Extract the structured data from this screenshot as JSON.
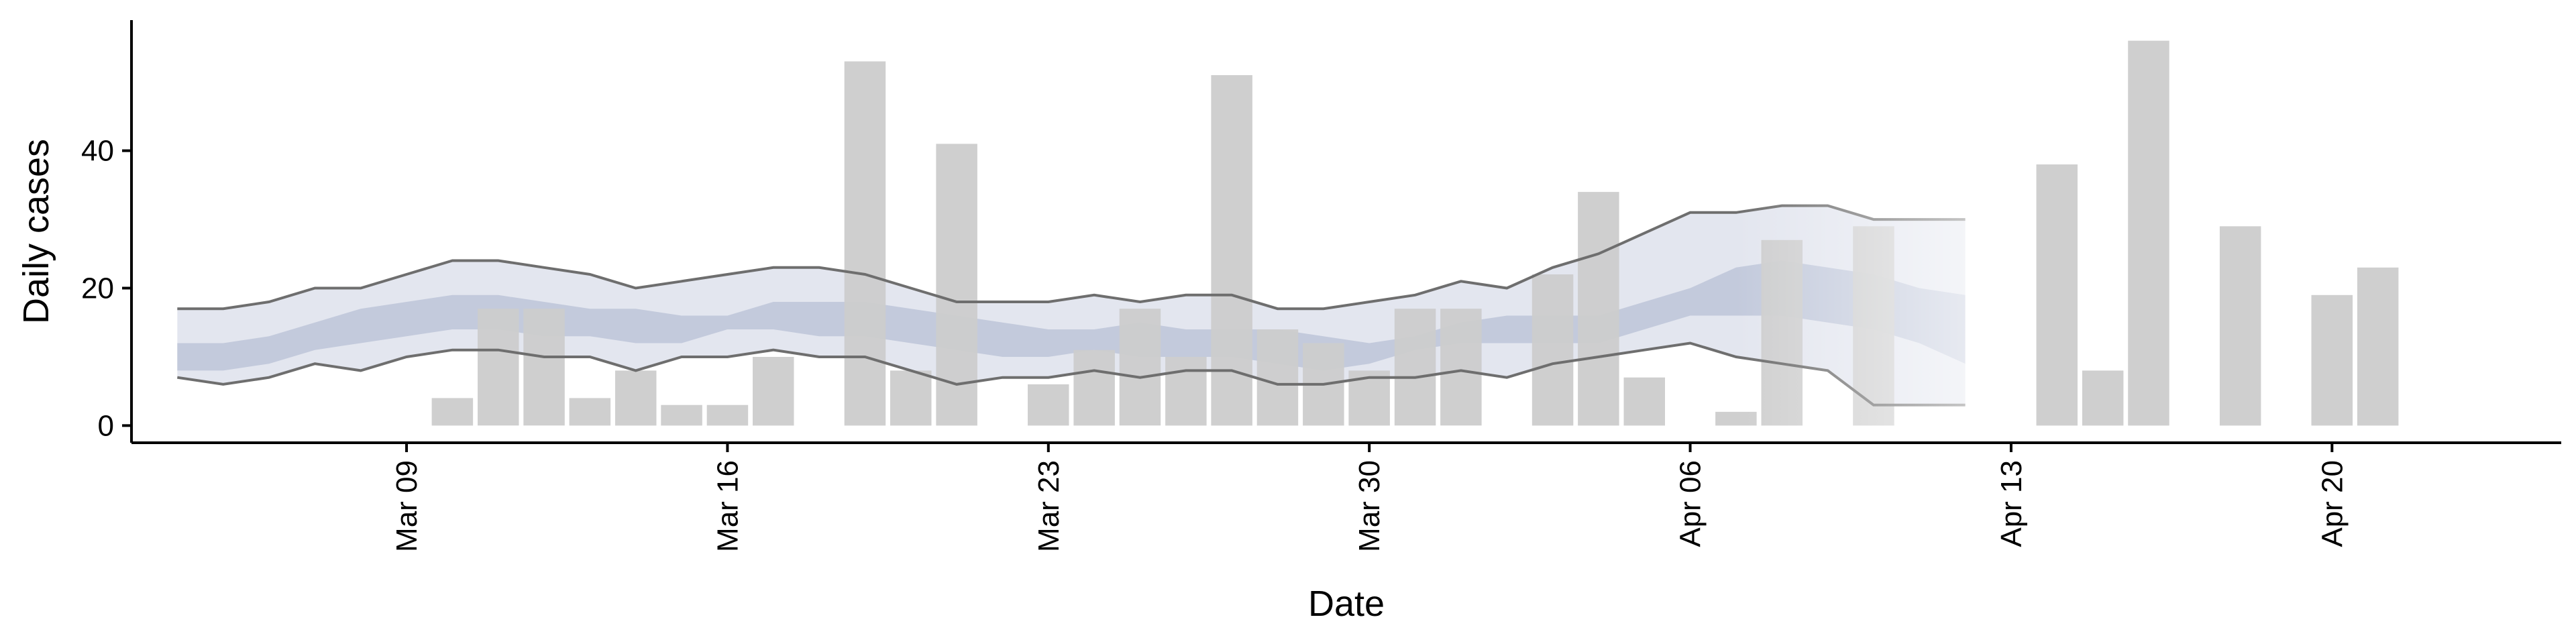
{
  "chart_data": {
    "type": "bar",
    "title": "",
    "xlabel": "Date",
    "ylabel": "Daily cases",
    "ylim": [
      -2.5,
      59
    ],
    "y_ticks": [
      0,
      20,
      40
    ],
    "x_range": [
      "2020-03-03",
      "2020-04-25"
    ],
    "x_ticks": [
      {
        "date": "2020-03-09",
        "label": "Mar 09"
      },
      {
        "date": "2020-03-16",
        "label": "Mar 16"
      },
      {
        "date": "2020-03-23",
        "label": "Mar 23"
      },
      {
        "date": "2020-03-30",
        "label": "Mar 30"
      },
      {
        "date": "2020-04-06",
        "label": "Apr 06"
      },
      {
        "date": "2020-04-13",
        "label": "Apr 13"
      },
      {
        "date": "2020-04-20",
        "label": "Apr 20"
      }
    ],
    "grid": false,
    "legend": "none",
    "colors": {
      "bars": "#cccccc",
      "band_outer": "#e3e6ef",
      "band_inner": "#c3cadc",
      "bound_lines": "#6e6e6e"
    },
    "bars": [
      {
        "date": "2020-03-10",
        "value": 4
      },
      {
        "date": "2020-03-11",
        "value": 17
      },
      {
        "date": "2020-03-12",
        "value": 17
      },
      {
        "date": "2020-03-13",
        "value": 4
      },
      {
        "date": "2020-03-14",
        "value": 8
      },
      {
        "date": "2020-03-15",
        "value": 3
      },
      {
        "date": "2020-03-16",
        "value": 3
      },
      {
        "date": "2020-03-17",
        "value": 10
      },
      {
        "date": "2020-03-19",
        "value": 53
      },
      {
        "date": "2020-03-20",
        "value": 8
      },
      {
        "date": "2020-03-21",
        "value": 41
      },
      {
        "date": "2020-03-23",
        "value": 6
      },
      {
        "date": "2020-03-24",
        "value": 11
      },
      {
        "date": "2020-03-25",
        "value": 17
      },
      {
        "date": "2020-03-26",
        "value": 10
      },
      {
        "date": "2020-03-27",
        "value": 51
      },
      {
        "date": "2020-03-28",
        "value": 14
      },
      {
        "date": "2020-03-29",
        "value": 12
      },
      {
        "date": "2020-03-30",
        "value": 8
      },
      {
        "date": "2020-03-31",
        "value": 17
      },
      {
        "date": "2020-04-01",
        "value": 17
      },
      {
        "date": "2020-04-03",
        "value": 22
      },
      {
        "date": "2020-04-04",
        "value": 34
      },
      {
        "date": "2020-04-05",
        "value": 7
      },
      {
        "date": "2020-04-07",
        "value": 2
      },
      {
        "date": "2020-04-08",
        "value": 27
      },
      {
        "date": "2020-04-10",
        "value": 29
      },
      {
        "date": "2020-04-14",
        "value": 38
      },
      {
        "date": "2020-04-15",
        "value": 8
      },
      {
        "date": "2020-04-16",
        "value": 56
      },
      {
        "date": "2020-04-18",
        "value": 29
      },
      {
        "date": "2020-04-20",
        "value": 19
      },
      {
        "date": "2020-04-21",
        "value": 23
      }
    ],
    "band": {
      "dates": [
        "2020-03-04",
        "2020-03-05",
        "2020-03-06",
        "2020-03-07",
        "2020-03-08",
        "2020-03-09",
        "2020-03-10",
        "2020-03-11",
        "2020-03-12",
        "2020-03-13",
        "2020-03-14",
        "2020-03-15",
        "2020-03-16",
        "2020-03-17",
        "2020-03-18",
        "2020-03-19",
        "2020-03-20",
        "2020-03-21",
        "2020-03-22",
        "2020-03-23",
        "2020-03-24",
        "2020-03-25",
        "2020-03-26",
        "2020-03-27",
        "2020-03-28",
        "2020-03-29",
        "2020-03-30",
        "2020-03-31",
        "2020-04-01",
        "2020-04-02",
        "2020-04-03",
        "2020-04-04",
        "2020-04-05",
        "2020-04-06",
        "2020-04-07",
        "2020-04-08",
        "2020-04-09",
        "2020-04-10",
        "2020-04-11",
        "2020-04-12"
      ],
      "upper": [
        17,
        17,
        18,
        20,
        20,
        22,
        24,
        24,
        23,
        22,
        20,
        21,
        22,
        23,
        23,
        22,
        20,
        18,
        18,
        18,
        19,
        18,
        19,
        19,
        17,
        17,
        18,
        19,
        21,
        20,
        23,
        25,
        28,
        31,
        31,
        32,
        32,
        30,
        30,
        30
      ],
      "inner_upper": [
        12,
        12,
        13,
        15,
        17,
        18,
        19,
        19,
        18,
        17,
        17,
        16,
        16,
        18,
        18,
        18,
        17,
        16,
        15,
        14,
        14,
        15,
        14,
        14,
        14,
        13,
        12,
        13,
        15,
        16,
        16,
        16,
        18,
        20,
        23,
        24,
        23,
        22,
        20,
        19
      ],
      "inner_lower": [
        8,
        8,
        9,
        11,
        12,
        13,
        14,
        14,
        13,
        13,
        12,
        12,
        14,
        14,
        13,
        13,
        12,
        11,
        10,
        10,
        11,
        10,
        10,
        10,
        9,
        8,
        9,
        11,
        12,
        12,
        12,
        12,
        14,
        16,
        16,
        16,
        15,
        14,
        12,
        9
      ],
      "lower": [
        7,
        6,
        7,
        9,
        8,
        10,
        11,
        11,
        10,
        10,
        8,
        10,
        10,
        11,
        10,
        10,
        8,
        6,
        7,
        7,
        8,
        7,
        8,
        8,
        6,
        6,
        7,
        7,
        8,
        7,
        9,
        10,
        11,
        12,
        10,
        9,
        8,
        3,
        3,
        3
      ]
    }
  }
}
